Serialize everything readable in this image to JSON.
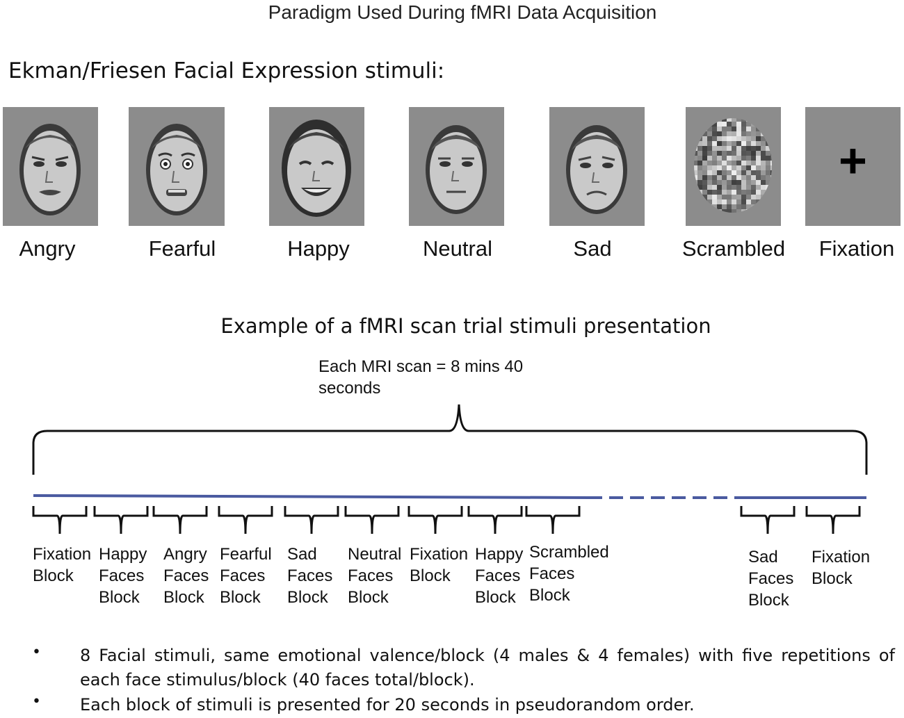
{
  "title": "Paradigm Used During fMRI Data Acquisition",
  "stimuli_heading": "Ekman/Friesen Facial Expression stimuli:",
  "stimuli": [
    {
      "label": "Angry"
    },
    {
      "label": "Fearful"
    },
    {
      "label": "Happy"
    },
    {
      "label": "Neutral"
    },
    {
      "label": "Sad"
    },
    {
      "label": "Scrambled"
    },
    {
      "label": "Fixation"
    }
  ],
  "fixation_symbol": "+",
  "trial_heading": "Example of a fMRI scan trial stimuli presentation",
  "scan_duration": "Each MRI scan = 8 mins 40 seconds",
  "blocks": [
    {
      "lines": [
        "Fixation",
        "Block"
      ]
    },
    {
      "lines": [
        "Happy",
        "Faces",
        "Block"
      ]
    },
    {
      "lines": [
        "Angry",
        "Faces",
        "Block"
      ]
    },
    {
      "lines": [
        "Fearful",
        "Faces",
        "Block"
      ]
    },
    {
      "lines": [
        "Sad",
        "Faces",
        "Block"
      ]
    },
    {
      "lines": [
        "Neutral",
        "Faces",
        "Block"
      ]
    },
    {
      "lines": [
        "Fixation",
        "Block"
      ]
    },
    {
      "lines": [
        "Happy",
        "Faces",
        "Block"
      ]
    },
    {
      "lines": [
        "Scrambled",
        "Faces",
        "Block"
      ]
    },
    {
      "lines": [
        "Sad",
        "Faces",
        "Block"
      ]
    },
    {
      "lines": [
        "Fixation",
        "Block"
      ]
    }
  ],
  "notes": [
    {
      "bullet": "•",
      "text": "8 Facial stimuli, same emotional valence/block (4 males & 4 females) with five repetitions of each face stimulus/block (40 faces total/block)."
    },
    {
      "bullet": "•",
      "text": "Each block of stimuli is presented for 20 seconds in pseudorandom order."
    }
  ],
  "colors": {
    "timeline": "#4a5aa0",
    "stimulus_background": "#8c8c8c"
  }
}
